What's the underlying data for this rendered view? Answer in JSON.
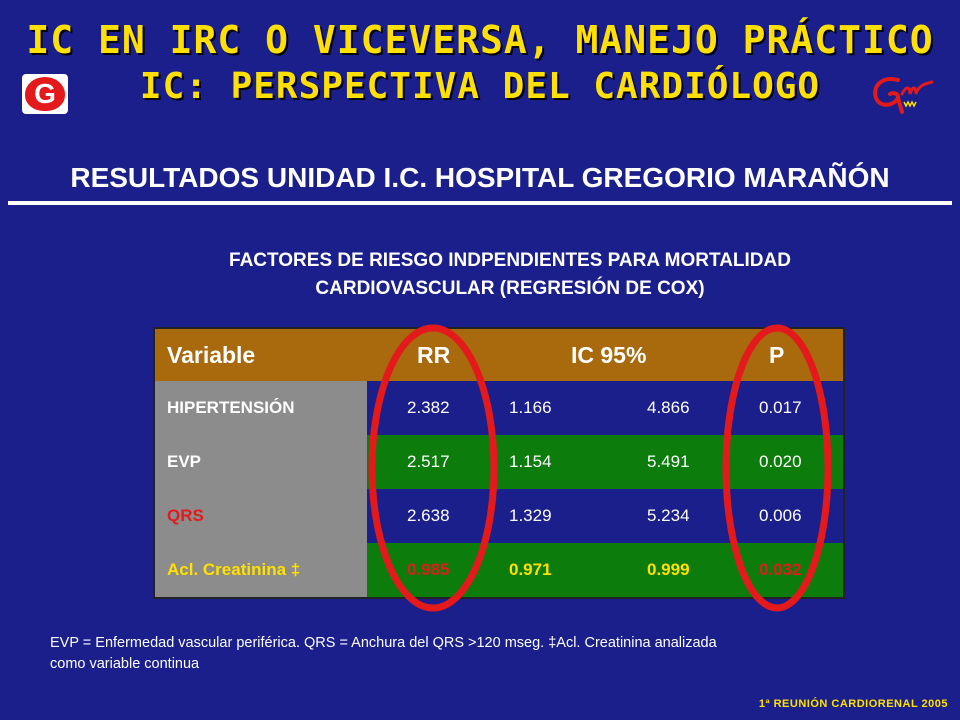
{
  "title_line1": "IC EN IRC O VICEVERSA, MANEJO PRÁCTICO",
  "title_line2": "IC: PERSPECTIVA DEL CARDIÓLOGO",
  "subtitle": "RESULTADOS UNIDAD I.C. HOSPITAL GREGORIO MARAÑÓN",
  "heading_line1": "FACTORES DE RIESGO INDPENDIENTES PARA MORTALIDAD",
  "heading_line2": "CARDIOVASCULAR (REGRESIÓN DE COX)",
  "table": {
    "headers": {
      "variable": "Variable",
      "rr": "RR",
      "ic": "IC 95%",
      "p": "P"
    },
    "rows": [
      {
        "variable": "HIPERTENSIÓN",
        "rr": "2.382",
        "ic_low": "1.166",
        "ic_high": "4.866",
        "p": "0.017"
      },
      {
        "variable": "EVP",
        "rr": "2.517",
        "ic_low": "1.154",
        "ic_high": "5.491",
        "p": "0.020"
      },
      {
        "variable": "QRS",
        "rr": "2.638",
        "ic_low": "1.329",
        "ic_high": "5.234",
        "p": "0.006"
      },
      {
        "variable": "Acl. Creatinina ‡",
        "rr": "0.985",
        "ic_low": "0.971",
        "ic_high": "0.999",
        "p": "0.032"
      }
    ]
  },
  "footnote_line1": "EVP = Enfermedad vascular periférica. QRS = Anchura del QRS >120 mseg. ‡Acl. Creatinina analizada",
  "footnote_line2": "como variable continua",
  "corner_text": "1ª REUNIÓN CARDIORENAL 2005",
  "logo_left_letter": "G",
  "colors": {
    "background": "#1a1f8c",
    "title": "#ffe000",
    "header": "#a86a0d",
    "green_row": "#0c7c0c",
    "variable_column": "#8c8c8c",
    "oval": "#e4191c"
  }
}
